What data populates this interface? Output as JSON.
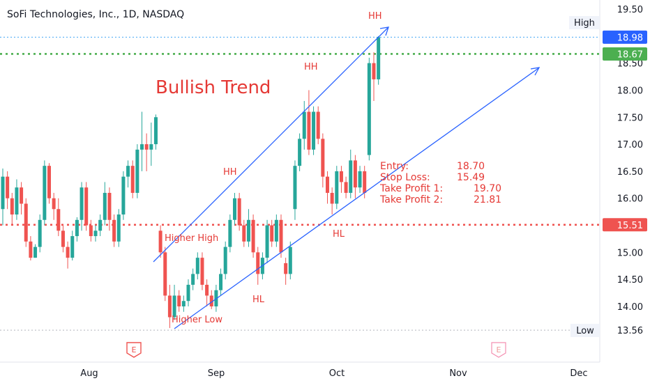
{
  "chart_data": {
    "type": "candlestick",
    "title": "SoFi Technologies, Inc., 1D, NASDAQ",
    "y_range": [
      13.3,
      19.7
    ],
    "y_ticks": [
      "19.50",
      "19.00",
      "18.50",
      "18.00",
      "17.50",
      "17.00",
      "16.50",
      "16.00",
      "15.50",
      "15.00",
      "14.50",
      "14.00"
    ],
    "x_ticks": [
      "Aug",
      "Sep",
      "Oct",
      "Nov",
      "Dec"
    ],
    "colors": {
      "up": "#26a69a",
      "down": "#ef5350",
      "trend": "#2962ff",
      "annotation": "#e53935",
      "green_line": "#4caf50",
      "blue_line": "#42a5f5"
    },
    "candles": [
      [
        15.8,
        16.4,
        16.55,
        15.5
      ],
      [
        16.4,
        16.0,
        16.5,
        15.8
      ],
      [
        16.0,
        15.7,
        16.1,
        15.5
      ],
      [
        15.7,
        16.2,
        16.35,
        15.6
      ],
      [
        16.2,
        15.9,
        16.3,
        15.7
      ],
      [
        15.9,
        15.2,
        16.0,
        15.1
      ],
      [
        15.2,
        14.9,
        15.3,
        14.85
      ],
      [
        14.9,
        15.1,
        15.15,
        14.9
      ],
      [
        15.1,
        15.6,
        15.7,
        15.0
      ],
      [
        15.6,
        16.6,
        16.7,
        15.5
      ],
      [
        16.6,
        16.0,
        16.65,
        15.9
      ],
      [
        16.0,
        15.8,
        16.1,
        15.6
      ],
      [
        15.8,
        15.4,
        16.0,
        15.3
      ],
      [
        15.4,
        15.1,
        15.5,
        15.0
      ],
      [
        15.1,
        14.9,
        15.2,
        14.7
      ],
      [
        14.9,
        15.3,
        15.4,
        14.85
      ],
      [
        15.3,
        15.6,
        15.65,
        15.2
      ],
      [
        15.6,
        16.2,
        16.3,
        15.4
      ],
      [
        16.2,
        15.5,
        16.3,
        15.4
      ],
      [
        15.5,
        15.3,
        15.6,
        15.2
      ],
      [
        15.3,
        15.4,
        15.5,
        15.2
      ],
      [
        15.4,
        15.6,
        15.7,
        15.3
      ],
      [
        15.6,
        16.1,
        16.3,
        15.5
      ],
      [
        16.1,
        15.6,
        16.2,
        15.4
      ],
      [
        15.6,
        15.2,
        15.7,
        15.1
      ],
      [
        15.2,
        15.7,
        15.8,
        15.1
      ],
      [
        15.7,
        16.4,
        16.5,
        15.6
      ],
      [
        16.4,
        16.6,
        16.7,
        16.2
      ],
      [
        16.6,
        16.1,
        16.7,
        16.0
      ],
      [
        16.1,
        16.9,
        17.0,
        16.0
      ],
      [
        16.9,
        17.0,
        17.6,
        16.5
      ],
      [
        17.0,
        16.9,
        17.2,
        16.5
      ],
      [
        16.9,
        17.0,
        17.4,
        16.6
      ],
      [
        17.0,
        17.5,
        17.55,
        16.9
      ],
      [
        15.4,
        15.0,
        15.5,
        14.9
      ],
      [
        15.0,
        14.2,
        15.1,
        14.1
      ],
      [
        14.2,
        13.8,
        14.4,
        13.6
      ],
      [
        13.8,
        14.2,
        14.4,
        13.75
      ],
      [
        14.2,
        14.0,
        14.3,
        13.9
      ],
      [
        14.0,
        14.1,
        14.2,
        13.9
      ],
      [
        14.1,
        14.4,
        14.5,
        14.0
      ],
      [
        14.4,
        14.6,
        14.7,
        14.3
      ],
      [
        14.6,
        14.9,
        15.0,
        14.5
      ],
      [
        14.9,
        14.4,
        15.0,
        14.3
      ],
      [
        14.4,
        14.2,
        14.5,
        14.0
      ],
      [
        14.2,
        14.0,
        14.3,
        13.95
      ],
      [
        14.0,
        14.3,
        14.4,
        13.9
      ],
      [
        14.3,
        14.6,
        14.7,
        14.2
      ],
      [
        14.6,
        15.1,
        15.2,
        14.5
      ],
      [
        15.1,
        15.6,
        15.7,
        15.0
      ],
      [
        15.6,
        16.0,
        16.1,
        15.5
      ],
      [
        16.0,
        15.5,
        16.1,
        15.4
      ],
      [
        15.5,
        15.2,
        15.6,
        15.1
      ],
      [
        15.2,
        15.6,
        15.8,
        15.1
      ],
      [
        15.6,
        15.0,
        15.7,
        14.9
      ],
      [
        15.0,
        14.6,
        15.1,
        14.4
      ],
      [
        14.6,
        14.9,
        15.0,
        14.5
      ],
      [
        14.9,
        15.5,
        15.6,
        14.8
      ],
      [
        15.5,
        15.2,
        15.6,
        15.1
      ],
      [
        15.2,
        15.6,
        15.7,
        15.1
      ],
      [
        15.6,
        15.0,
        15.7,
        14.9
      ],
      [
        14.8,
        14.6,
        14.9,
        14.4
      ],
      [
        14.6,
        15.1,
        15.2,
        14.5
      ],
      [
        15.8,
        16.6,
        16.7,
        15.6
      ],
      [
        16.6,
        17.1,
        17.2,
        16.5
      ],
      [
        17.1,
        17.6,
        17.8,
        16.9
      ],
      [
        17.6,
        16.9,
        18.0,
        16.8
      ],
      [
        16.9,
        17.6,
        17.7,
        16.8
      ],
      [
        17.6,
        17.1,
        17.7,
        17.0
      ],
      [
        17.1,
        16.4,
        17.2,
        16.2
      ],
      [
        16.4,
        16.1,
        16.5,
        15.9
      ],
      [
        16.1,
        15.9,
        16.2,
        15.7
      ],
      [
        15.9,
        16.5,
        16.6,
        15.8
      ],
      [
        16.5,
        16.3,
        16.6,
        16.1
      ],
      [
        16.3,
        16.1,
        16.4,
        16.0
      ],
      [
        16.1,
        16.7,
        16.9,
        16.0
      ],
      [
        16.7,
        16.2,
        16.8,
        16.0
      ],
      [
        16.2,
        16.5,
        16.6,
        16.1
      ],
      [
        16.5,
        16.1,
        16.6,
        16.0
      ],
      [
        16.8,
        18.5,
        18.6,
        16.7
      ],
      [
        18.5,
        18.2,
        18.7,
        17.8
      ],
      [
        18.2,
        18.98,
        19.0,
        18.1
      ]
    ],
    "price_labels": [
      {
        "key": "high",
        "text": "18.98",
        "value": 18.98,
        "bg": "#2962ff",
        "fg": "#ffffff"
      },
      {
        "key": "green",
        "text": "18.67",
        "value": 18.67,
        "bg": "#4caf50",
        "fg": "#ffffff"
      },
      {
        "key": "red",
        "text": "15.51",
        "value": 15.51,
        "bg": "#ef5350",
        "fg": "#ffffff"
      },
      {
        "key": "low",
        "text": "13.56",
        "value": 13.56,
        "bg": "#ffffff",
        "fg": "#131722"
      }
    ],
    "horizontal_lines": [
      {
        "value": 18.98,
        "color": "#42a5f5",
        "style": "dotted-thin"
      },
      {
        "value": 18.67,
        "color": "#4caf50",
        "style": "dotted"
      },
      {
        "value": 15.51,
        "color": "#ef5350",
        "style": "dotted"
      },
      {
        "value": 13.56,
        "color": "#b2b5be",
        "style": "dotted-thin"
      }
    ],
    "high_tag": "High",
    "low_tag": "Low",
    "headline": "Bullish Trend",
    "pattern_labels": [
      "HH",
      "HH",
      "HH",
      "Higher High",
      "Higher Low",
      "HL",
      "HL"
    ],
    "trade_levels": [
      {
        "label": "Entry:",
        "value": "18.70"
      },
      {
        "label": "Stop Loss:",
        "value": "15.49"
      },
      {
        "label": "Take Profit 1:",
        "value": "19.70"
      },
      {
        "label": "Take Profit 2:",
        "value": "21.81"
      }
    ],
    "earnings_marker": "E"
  }
}
